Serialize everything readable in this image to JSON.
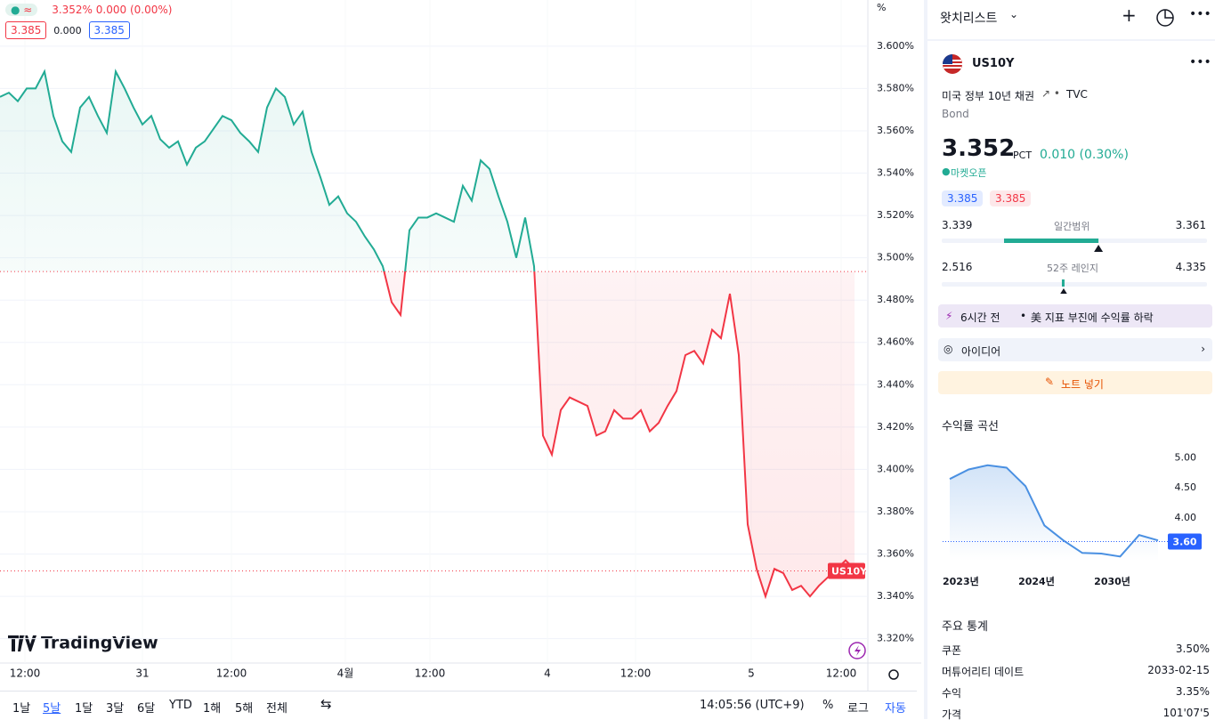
{
  "legend": {
    "price": "3.352%",
    "change": "0.000 (0.00%)",
    "bid": "3.385",
    "spread": "0.000",
    "ask": "3.385"
  },
  "axis_unit": "%",
  "branding": "TradingView",
  "timeframes": [
    "1날",
    "5날",
    "1달",
    "3달",
    "6달",
    "YTD",
    "1해",
    "5해",
    "전체"
  ],
  "clock": "14:05:56 (UTC+9)",
  "toolbar_right": [
    "%",
    "로그",
    "자동"
  ],
  "chart_data": [
    {
      "type": "baseline",
      "series": [
        {
          "name": "US10Y",
          "color_up": "#22ab94",
          "color_down": "#f23645",
          "values": [
            3.576,
            3.578,
            3.574,
            3.58,
            3.58,
            3.588,
            3.567,
            3.555,
            3.55,
            3.571,
            3.576,
            3.567,
            3.559,
            3.588,
            3.58,
            3.571,
            3.563,
            3.567,
            3.556,
            3.552,
            3.555,
            3.544,
            3.552,
            3.555,
            3.561,
            3.567,
            3.565,
            3.559,
            3.555,
            3.55,
            3.571,
            3.58,
            3.576,
            3.563,
            3.569,
            3.55,
            3.538,
            3.525,
            3.529,
            3.521,
            3.517,
            3.51,
            3.504,
            3.496,
            3.479,
            3.473,
            3.513,
            3.519,
            3.519,
            3.521,
            3.519,
            3.517,
            3.534,
            3.527,
            3.546,
            3.542,
            3.529,
            3.517,
            3.5,
            3.519,
            3.496,
            3.416,
            3.407,
            3.428,
            3.434,
            3.432,
            3.43,
            3.416,
            3.418,
            3.428,
            3.424,
            3.424,
            3.428,
            3.418,
            3.422,
            3.43,
            3.437,
            3.454,
            3.456,
            3.45,
            3.466,
            3.462,
            3.483,
            3.454,
            3.374,
            3.353,
            3.34,
            3.353,
            3.351,
            3.343,
            3.345,
            3.34,
            3.345,
            3.349,
            3.353,
            3.357,
            3.353
          ]
        }
      ],
      "baseline": 3.4935,
      "last_value": 3.352,
      "grid": true,
      "xlim": [
        0,
        97.5
      ],
      "xticks": [
        {
          "value": 2.8,
          "label": "12:00"
        },
        {
          "value": 16,
          "label": "31"
        },
        {
          "value": 26,
          "label": "12:00"
        },
        {
          "value": 38.8,
          "label": "4월"
        },
        {
          "value": 48.3,
          "label": "12:00"
        },
        {
          "value": 61.5,
          "label": "4"
        },
        {
          "value": 71.4,
          "label": "12:00"
        },
        {
          "value": 84.4,
          "label": "5"
        },
        {
          "value": 94.5,
          "label": "12:00"
        }
      ],
      "ylim": [
        3.3085,
        3.6218
      ],
      "yticks": [
        {
          "value": 3.32,
          "label": "3.320%"
        },
        {
          "value": 3.34,
          "label": "3.340%"
        },
        {
          "value": 3.36,
          "label": "3.360%"
        },
        {
          "value": 3.38,
          "label": "3.380%"
        },
        {
          "value": 3.4,
          "label": "3.400%"
        },
        {
          "value": 3.42,
          "label": "3.420%"
        },
        {
          "value": 3.44,
          "label": "3.440%"
        },
        {
          "value": 3.46,
          "label": "3.460%"
        },
        {
          "value": 3.48,
          "label": "3.480%"
        },
        {
          "value": 3.5,
          "label": "3.500%"
        },
        {
          "value": 3.52,
          "label": "3.520%"
        },
        {
          "value": 3.54,
          "label": "3.540%"
        },
        {
          "value": 3.56,
          "label": "3.560%"
        },
        {
          "value": 3.58,
          "label": "3.580%"
        },
        {
          "value": 3.6,
          "label": "3.600%"
        }
      ]
    },
    {
      "type": "line",
      "title": "수익률 곡선",
      "color": "#4a90e2",
      "categories": [
        "2023년",
        null,
        null,
        null,
        "2024년",
        null,
        null,
        null,
        "2030년",
        null,
        null,
        null
      ],
      "values": [
        4.65,
        4.81,
        4.88,
        4.84,
        4.53,
        3.87,
        3.62,
        3.41,
        3.4,
        3.35,
        3.71,
        3.62
      ],
      "current": {
        "value": 3.6,
        "label": "3.60"
      },
      "ylim": [
        3.28,
        5.22
      ],
      "yticks": [
        {
          "value": 4,
          "label": "4.00"
        },
        {
          "value": 4.5,
          "label": "4.50"
        },
        {
          "value": 5,
          "label": "5.00"
        }
      ]
    }
  ],
  "watchlist": {
    "title": "왓치리스트",
    "symbol": "US10Y",
    "description": "미국 정부 10년 채권",
    "exchange": "TVC",
    "kind": "Bond",
    "price": 3.352,
    "unit": "PCT",
    "change": "0.010 (0.30%)",
    "status": "마켓오픈",
    "bid": "3.385",
    "ask": "3.385",
    "day_range": {
      "low": 3.339,
      "label": "일간범위",
      "high": 3.361
    },
    "year_range": {
      "low": 2.516,
      "label": "52주 레인지",
      "high": 4.335
    },
    "news_time": "6시간 전",
    "news": "美 지표 부진에 수익률 하락",
    "ideas": "아이디어",
    "note": "노트 넣기",
    "stats_title": "주요 통계",
    "stats": [
      [
        "쿠폰",
        "3.50%"
      ],
      [
        "머튜어리티 데이트",
        "2033-02-15"
      ],
      [
        "수익",
        "3.35%"
      ],
      [
        "가격",
        "101'07'5"
      ]
    ]
  }
}
